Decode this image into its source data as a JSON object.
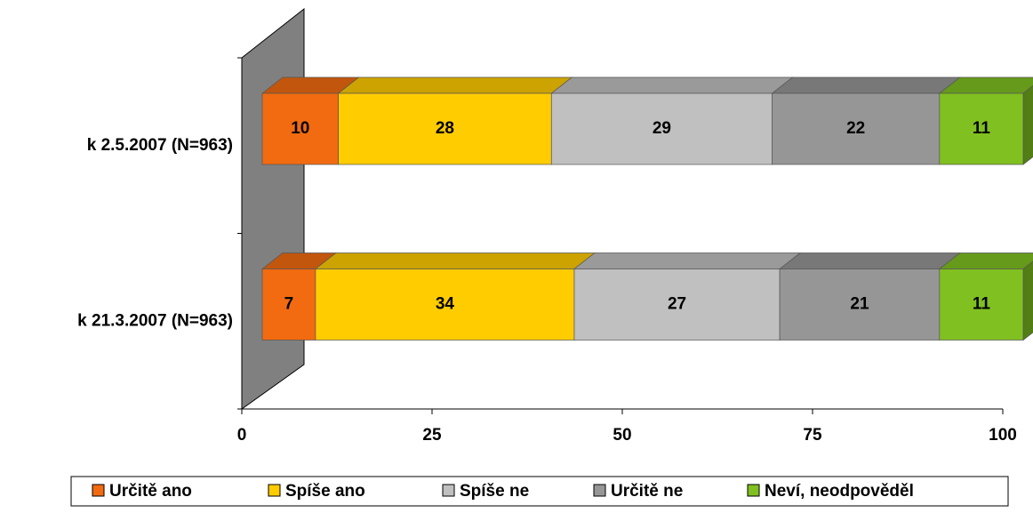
{
  "chart_data": {
    "type": "stacked-bar-3d",
    "orientation": "horizontal",
    "categories": [
      "k 2.5.2007 (N=963)",
      "k 21.3.2007 (N=963)"
    ],
    "series": [
      {
        "name": "Určitě ano",
        "color": "#f26b10",
        "values": [
          10,
          7
        ]
      },
      {
        "name": "Spíše ano",
        "color": "#ffcc00",
        "values": [
          28,
          34
        ]
      },
      {
        "name": "Spíše ne",
        "color": "#c0c0c0",
        "values": [
          29,
          27
        ]
      },
      {
        "name": "Určitě ne",
        "color": "#969696",
        "values": [
          22,
          21
        ]
      },
      {
        "name": "Neví, neodpověděl",
        "color": "#80c020",
        "values": [
          11,
          11
        ]
      }
    ],
    "xlim": [
      0,
      100
    ],
    "xticks": [
      0,
      25,
      50,
      75,
      100
    ],
    "legend": "bottom"
  }
}
